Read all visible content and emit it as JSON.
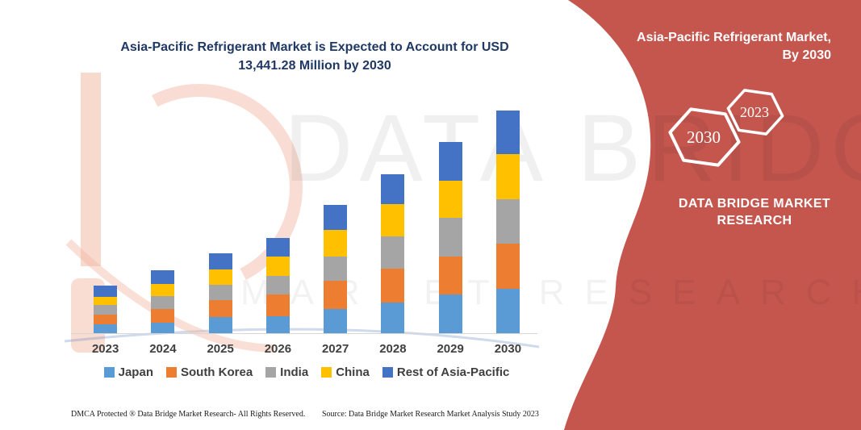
{
  "title": {
    "line1": "Asia-Pacific Refrigerant Market is Expected to Account for USD",
    "line2": "13,441.28 Million by 2030"
  },
  "side_panel": {
    "panel_color": "#C4564E",
    "title_line1": "Asia-Pacific Refrigerant Market,",
    "title_line2": "By 2030",
    "hexagons": {
      "back": {
        "label": "2030"
      },
      "front": {
        "label": "2023"
      }
    },
    "brand_line1": "DATA BRIDGE MARKET",
    "brand_line2": "RESEARCH"
  },
  "watermarks": {
    "large_text": "DATA BRIDGE",
    "row_text": "MARKET RESEARCH"
  },
  "chart_data": {
    "type": "bar",
    "stacked": true,
    "title": "Asia-Pacific Refrigerant Market is Expected to Account for USD 13,441.28 Million by 2030",
    "unit": "USD Million",
    "categories": [
      "2023",
      "2024",
      "2025",
      "2026",
      "2027",
      "2028",
      "2029",
      "2030"
    ],
    "series": [
      {
        "name": "Japan",
        "color": "#5B9BD5",
        "values": [
          540,
          630,
          970,
          1020,
          1460,
          1850,
          2340,
          2680
        ]
      },
      {
        "name": "South Korea",
        "color": "#ED7D31",
        "values": [
          580,
          830,
          1020,
          1310,
          1700,
          2050,
          2290,
          2730
        ]
      },
      {
        "name": "India",
        "color": "#A5A5A5",
        "values": [
          580,
          780,
          930,
          1120,
          1460,
          1950,
          2340,
          2680
        ]
      },
      {
        "name": "China",
        "color": "#FFC000",
        "values": [
          490,
          730,
          930,
          1170,
          1610,
          1950,
          2240,
          2725
        ]
      },
      {
        "name": "Rest of Asia-Pacific",
        "color": "#4472C4",
        "values": [
          680,
          830,
          970,
          1120,
          1510,
          1800,
          2340,
          2626.28
        ]
      }
    ],
    "totals": [
      2870,
      3800,
      4820,
      5740,
      7740,
      9600,
      11550,
      13441.28
    ],
    "y_axis_visible": false,
    "grid": "off",
    "legend_position": "bottom",
    "x_axis_label": "",
    "y_axis_label": ""
  },
  "footer": {
    "dmca": "DMCA Protected ® Data Bridge Market Research-  All Rights Reserved.",
    "source": "Source: Data Bridge Market Research  Market Analysis Study 2023"
  },
  "style": {
    "title_color": "#1F3864",
    "axis_label_color": "#404040",
    "axis_line_color": "#D6D6D6"
  }
}
